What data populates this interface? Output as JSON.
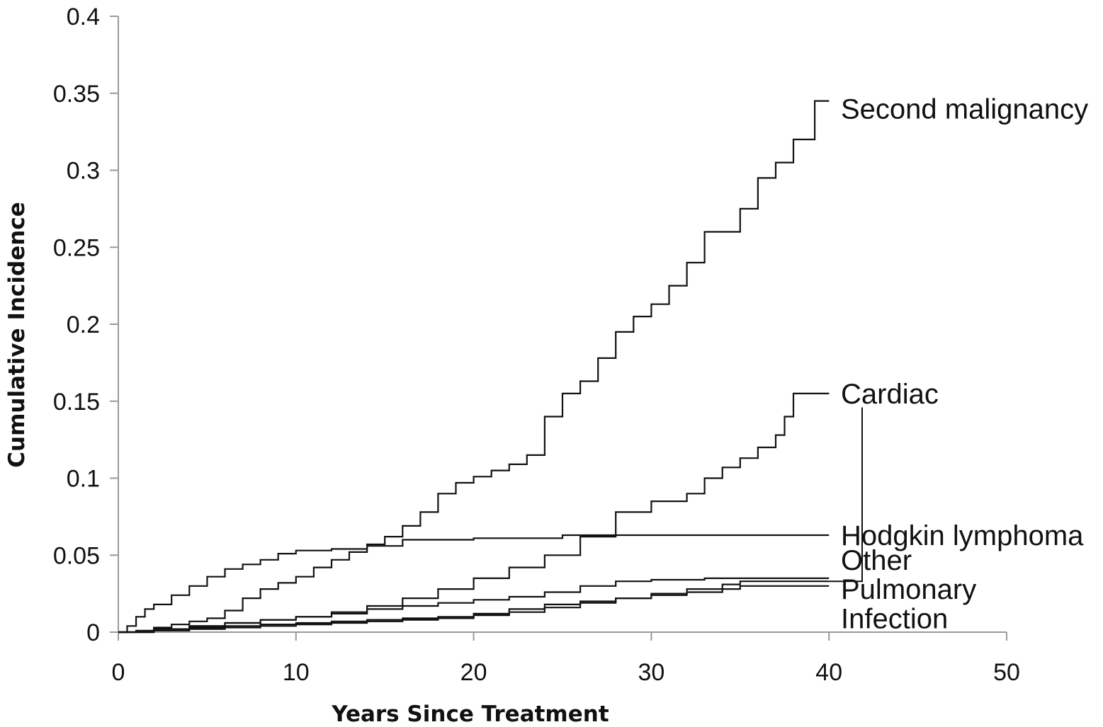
{
  "chart_data": {
    "type": "line",
    "step": true,
    "title": "",
    "xlabel": "Years Since Treatment",
    "ylabel": "Cumulative Incidence",
    "xlim": [
      0,
      50
    ],
    "ylim": [
      0,
      0.4
    ],
    "xticks": [
      0,
      10,
      20,
      30,
      40,
      50
    ],
    "yticks": [
      0,
      0.05,
      0.1,
      0.15,
      0.2,
      0.25,
      0.3,
      0.35,
      0.4
    ],
    "ytick_labels": [
      "0",
      "0.05",
      "0.1",
      "0.15",
      "0.2",
      "0.25",
      "0.3",
      "0.35",
      "0.4"
    ],
    "xtick_labels": [
      "0",
      "10",
      "20",
      "30",
      "40",
      "50"
    ],
    "grid": false,
    "legend": "direct labels at right end of each curve",
    "series": [
      {
        "name": "Second malignancy",
        "x": [
          0,
          1,
          2,
          3,
          4,
          5,
          6,
          7,
          8,
          9,
          10,
          11,
          12,
          13,
          14,
          15,
          16,
          17,
          18,
          19,
          20,
          21,
          22,
          23,
          24,
          25,
          26,
          27,
          28,
          29,
          30,
          31,
          32,
          33,
          34,
          35,
          36,
          37,
          38,
          39.2,
          40
        ],
        "y": [
          0,
          0.001,
          0.003,
          0.005,
          0.007,
          0.009,
          0.014,
          0.022,
          0.028,
          0.032,
          0.036,
          0.042,
          0.047,
          0.052,
          0.057,
          0.062,
          0.069,
          0.078,
          0.09,
          0.097,
          0.101,
          0.105,
          0.109,
          0.115,
          0.14,
          0.155,
          0.163,
          0.178,
          0.195,
          0.205,
          0.213,
          0.225,
          0.24,
          0.26,
          0.26,
          0.275,
          0.295,
          0.305,
          0.32,
          0.345,
          0.345
        ]
      },
      {
        "name": "Cardiac",
        "x": [
          0,
          2,
          4,
          6,
          8,
          10,
          12,
          14,
          16,
          18,
          20,
          22,
          24,
          26,
          28,
          30,
          32,
          33,
          34,
          35,
          36,
          37,
          37.5,
          38,
          40
        ],
        "y": [
          0,
          0.002,
          0.004,
          0.006,
          0.008,
          0.01,
          0.013,
          0.017,
          0.022,
          0.028,
          0.035,
          0.042,
          0.05,
          0.062,
          0.078,
          0.085,
          0.09,
          0.1,
          0.107,
          0.113,
          0.12,
          0.128,
          0.14,
          0.155,
          0.155
        ]
      },
      {
        "name": "Hodgkin lymphoma",
        "x": [
          0,
          0.5,
          1,
          1.5,
          2,
          3,
          4,
          5,
          6,
          7,
          8,
          9,
          10,
          12,
          14,
          16,
          20,
          25,
          30,
          35,
          40
        ],
        "y": [
          0,
          0.004,
          0.01,
          0.015,
          0.018,
          0.024,
          0.03,
          0.036,
          0.041,
          0.044,
          0.047,
          0.051,
          0.053,
          0.054,
          0.056,
          0.06,
          0.061,
          0.063,
          0.063,
          0.063,
          0.063
        ]
      },
      {
        "name": "Other",
        "x": [
          0,
          2,
          4,
          6,
          8,
          10,
          12,
          14,
          16,
          18,
          20,
          22,
          24,
          26,
          28,
          30,
          33,
          36,
          38,
          40
        ],
        "y": [
          0,
          0.002,
          0.004,
          0.006,
          0.008,
          0.01,
          0.012,
          0.015,
          0.017,
          0.019,
          0.021,
          0.023,
          0.026,
          0.03,
          0.033,
          0.034,
          0.035,
          0.035,
          0.035,
          0.035
        ]
      },
      {
        "name": "Pulmonary",
        "x": [
          0,
          2,
          4,
          6,
          8,
          10,
          12,
          14,
          16,
          18,
          20,
          22,
          24,
          26,
          28,
          30,
          32,
          34,
          35,
          36,
          38,
          40
        ],
        "y": [
          0,
          0.001,
          0.002,
          0.003,
          0.004,
          0.005,
          0.006,
          0.007,
          0.008,
          0.009,
          0.011,
          0.013,
          0.016,
          0.019,
          0.022,
          0.025,
          0.028,
          0.031,
          0.033,
          0.033,
          0.033,
          0.033
        ]
      },
      {
        "name": "Infection",
        "x": [
          0,
          2,
          4,
          6,
          8,
          10,
          12,
          14,
          16,
          18,
          20,
          22,
          24,
          26,
          28,
          30,
          32,
          34,
          35,
          36,
          38,
          40
        ],
        "y": [
          0,
          0.002,
          0.003,
          0.004,
          0.005,
          0.006,
          0.007,
          0.008,
          0.009,
          0.01,
          0.012,
          0.015,
          0.018,
          0.02,
          0.022,
          0.024,
          0.026,
          0.028,
          0.03,
          0.03,
          0.03,
          0.03
        ]
      }
    ]
  }
}
